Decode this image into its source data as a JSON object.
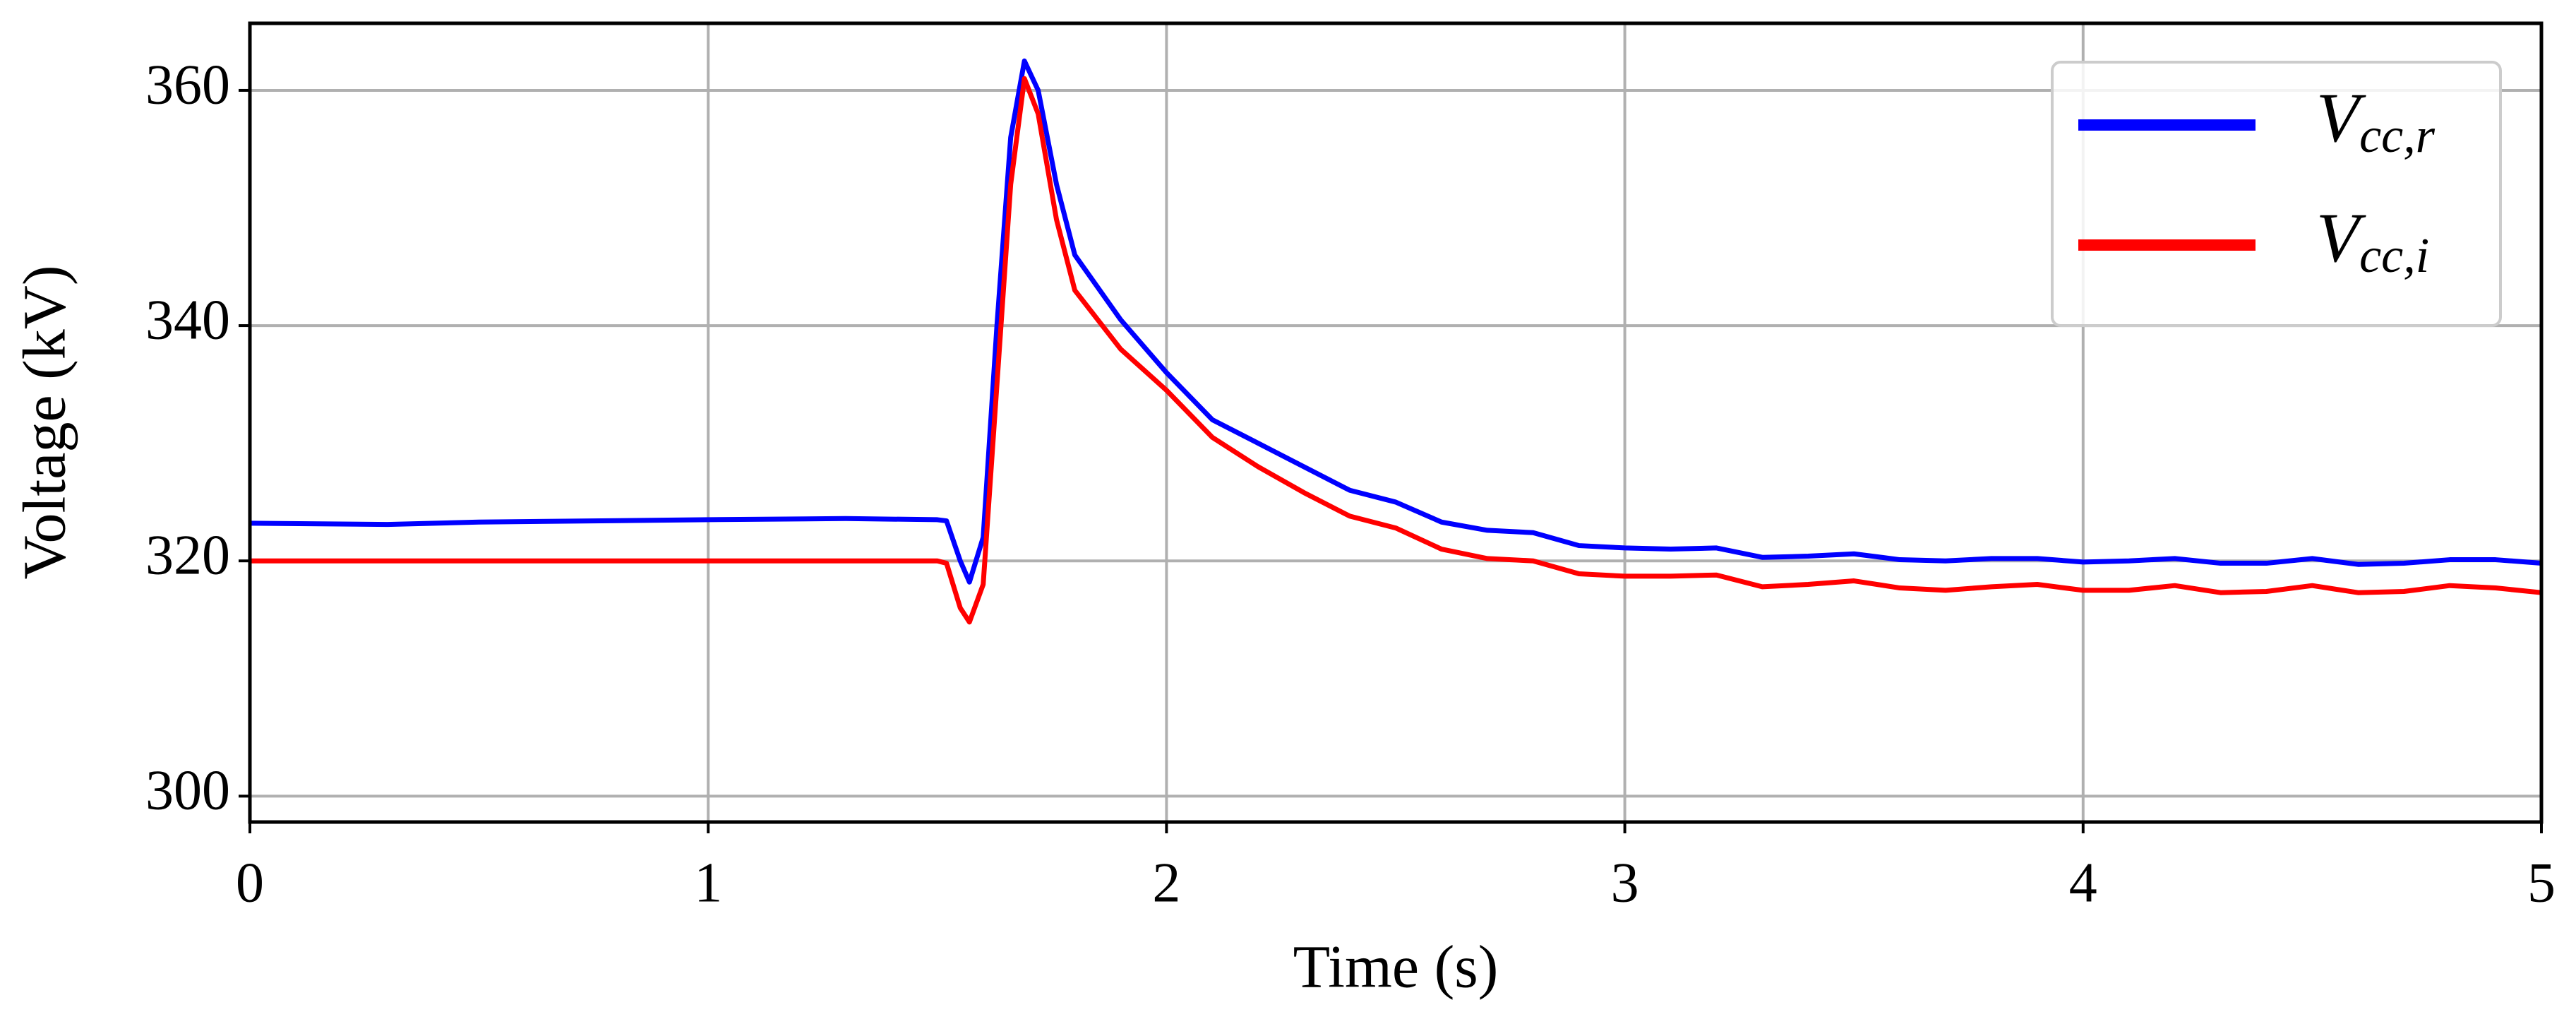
{
  "chart_data": {
    "type": "line",
    "xlabel": "Time (s)",
    "ylabel": "Voltage (kV)",
    "x": [
      0,
      0.3,
      0.5,
      1.0,
      1.3,
      1.5,
      1.52,
      1.55,
      1.57,
      1.6,
      1.63,
      1.66,
      1.69,
      1.72,
      1.76,
      1.8,
      1.9,
      2.0,
      2.1,
      2.2,
      2.3,
      2.4,
      2.5,
      2.6,
      2.7,
      2.8,
      2.9,
      3.0,
      3.1,
      3.2,
      3.3,
      3.4,
      3.5,
      3.6,
      3.7,
      3.8,
      3.9,
      4.0,
      4.1,
      4.2,
      4.3,
      4.4,
      4.5,
      4.6,
      4.7,
      4.8,
      4.9,
      5.0
    ],
    "series": [
      {
        "name": "Vcc,r",
        "color": "#0000ff",
        "values": [
          323.2,
          323.1,
          323.3,
          323.5,
          323.6,
          323.5,
          323.4,
          320,
          318.2,
          322,
          340,
          356,
          362.5,
          360,
          352,
          346,
          340.5,
          336,
          332,
          330,
          328,
          326,
          325,
          323.3,
          322.6,
          322.4,
          321.3,
          321.1,
          321,
          321.1,
          320.3,
          320.4,
          320.6,
          320.1,
          320,
          320.2,
          320.2,
          319.9,
          320,
          320.2,
          319.8,
          319.8,
          320.2,
          319.7,
          319.8,
          320.1,
          320.1,
          319.8
        ]
      },
      {
        "name": "Vcc,i",
        "color": "#ff0000",
        "values": [
          320,
          320,
          320,
          320,
          320,
          320,
          319.8,
          316,
          314.8,
          318,
          335,
          352,
          361,
          358,
          349,
          343,
          338,
          334.5,
          330.5,
          328,
          325.8,
          323.8,
          322.8,
          321,
          320.2,
          320,
          318.9,
          318.7,
          318.7,
          318.8,
          317.8,
          318,
          318.3,
          317.7,
          317.5,
          317.8,
          318,
          317.5,
          317.5,
          317.9,
          317.3,
          317.4,
          317.9,
          317.3,
          317.4,
          317.9,
          317.7,
          317.3
        ]
      }
    ],
    "xlim": [
      0,
      5
    ],
    "xticks": [
      0,
      1,
      2,
      3,
      4,
      5
    ],
    "ylim": [
      297.8,
      365.7
    ],
    "yticks": [
      300,
      320,
      340,
      360
    ],
    "grid": true,
    "legend": "upper right"
  }
}
